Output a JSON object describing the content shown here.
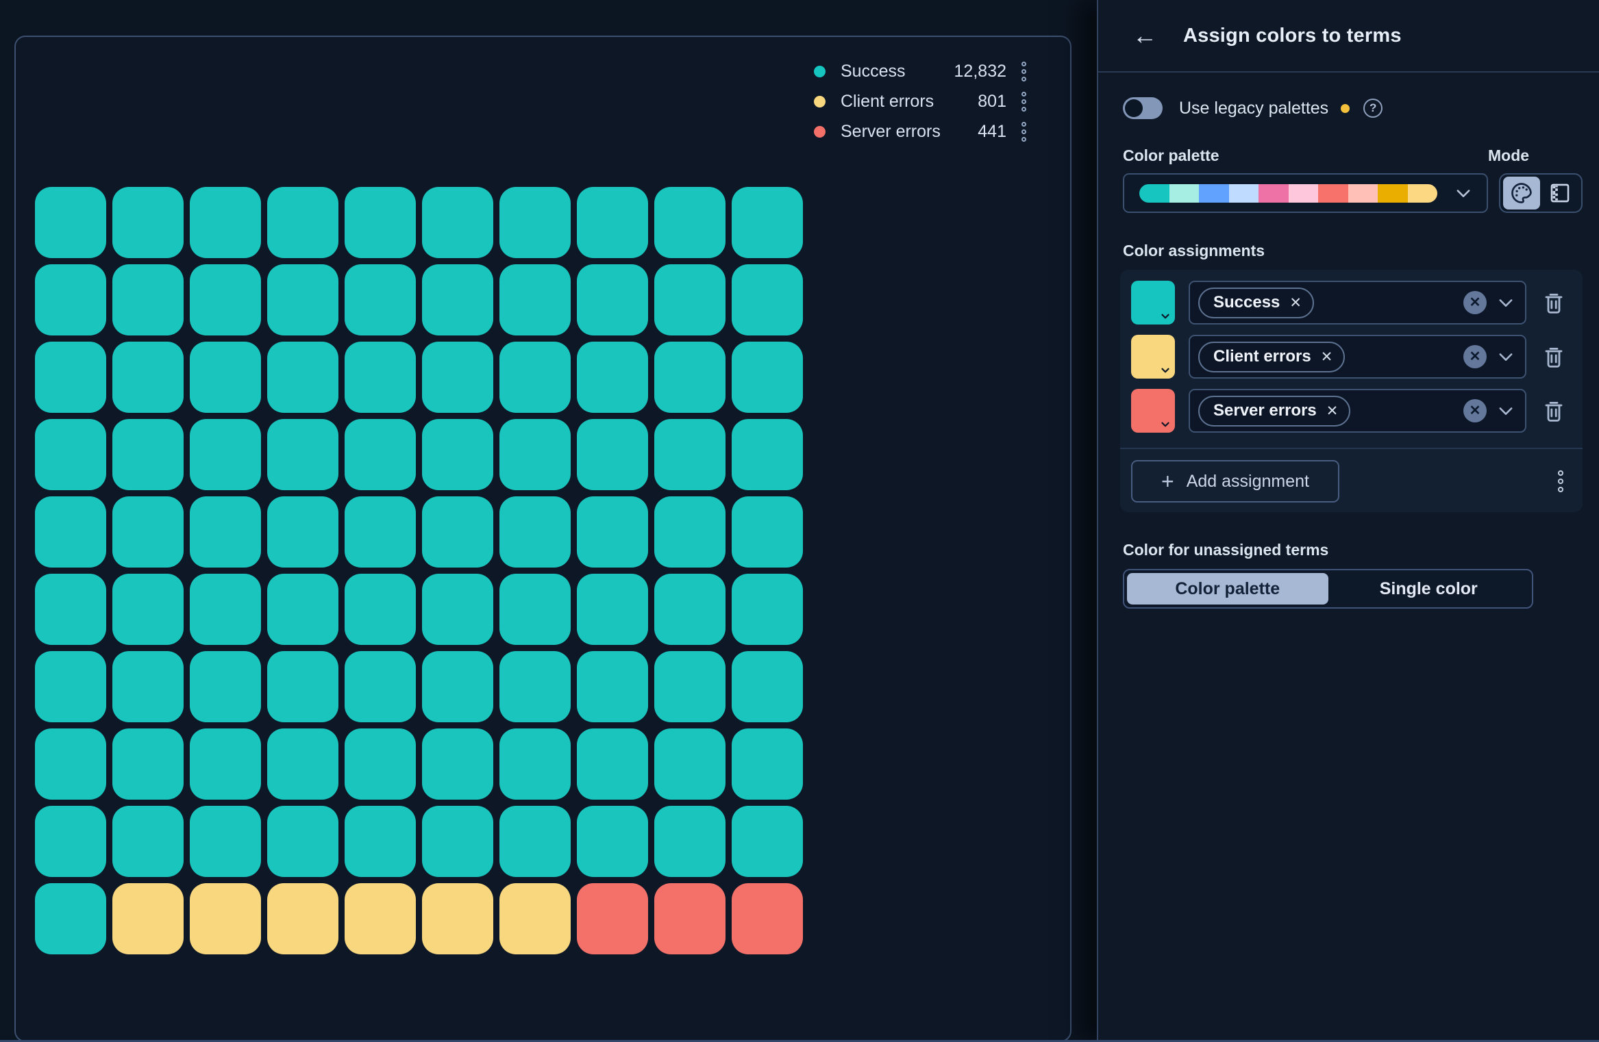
{
  "icons": {
    "back": "←",
    "close": "✕",
    "plus": "+",
    "help": "?"
  },
  "chart": {
    "legend": {
      "items": [
        {
          "label": "Success",
          "value": "12,832",
          "color": "#16C5C0"
        },
        {
          "label": "Client errors",
          "value": "801",
          "color": "#F8D77E"
        },
        {
          "label": "Server errors",
          "value": "441",
          "color": "#F4716A"
        }
      ]
    },
    "chart_data": {
      "type": "waffle",
      "grid": {
        "rows": 10,
        "cols": 10
      },
      "series": [
        {
          "name": "Success",
          "value": 12832,
          "cells": 91,
          "color": "#19C5BD"
        },
        {
          "name": "Client errors",
          "value": 801,
          "cells": 6,
          "color": "#F8D77E"
        },
        {
          "name": "Server errors",
          "value": 441,
          "cells": 3,
          "color": "#F4716A"
        }
      ],
      "legend_position": "top-right"
    }
  },
  "flyout": {
    "title": "Assign colors to terms",
    "legacy": {
      "label": "Use legacy palettes",
      "enabled": false,
      "badge_color": "#F5C13D"
    },
    "palette": {
      "label": "Color palette",
      "colors": [
        "#16C5C0",
        "#A6EDE4",
        "#61A2FF",
        "#BFDBFF",
        "#EE72A6",
        "#FFC7DB",
        "#F6726A",
        "#FFC0B8",
        "#EAAE01",
        "#FCD883"
      ]
    },
    "mode": {
      "label": "Mode",
      "selected": "palette"
    },
    "assignments": {
      "label": "Color assignments",
      "rows": [
        {
          "term": "Success",
          "color": "#16C5C0"
        },
        {
          "term": "Client errors",
          "color": "#F8D77E"
        },
        {
          "term": "Server errors",
          "color": "#F4716A"
        }
      ],
      "add_label": "Add assignment"
    },
    "unassigned": {
      "label": "Color for unassigned terms",
      "options": [
        {
          "label": "Color palette",
          "selected": true
        },
        {
          "label": "Single color",
          "selected": false
        }
      ]
    }
  }
}
